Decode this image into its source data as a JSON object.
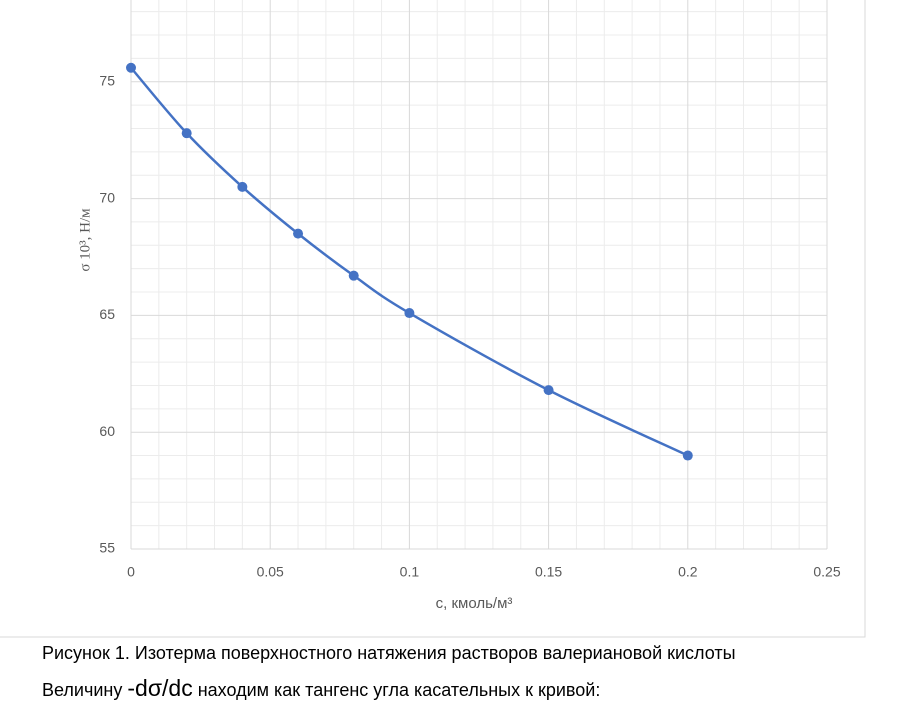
{
  "chart_data": {
    "type": "line",
    "xlabel": "c, кмоль/м³",
    "ylabel": "σ 10³, Н/м",
    "x": [
      0,
      0.02,
      0.04,
      0.06,
      0.08,
      0.1,
      0.15,
      0.2
    ],
    "series": [
      {
        "name": "σ",
        "color": "#4472c4",
        "values": [
          75.6,
          72.8,
          70.5,
          68.5,
          66.7,
          65.1,
          61.8,
          59.0
        ]
      }
    ],
    "xlim": [
      0,
      0.25
    ],
    "ylim": [
      55,
      78.5
    ],
    "xticks": [
      0,
      0.05,
      0.1,
      0.15,
      0.2,
      0.25
    ],
    "yticks": [
      55,
      60,
      65,
      70,
      75
    ],
    "minor_xticks": [
      0.01,
      0.02,
      0.03,
      0.04,
      0.06,
      0.07,
      0.08,
      0.09,
      0.11,
      0.12,
      0.13,
      0.14,
      0.16,
      0.17,
      0.18,
      0.19,
      0.21,
      0.22,
      0.23,
      0.24
    ],
    "minor_yticks": [
      56,
      57,
      58,
      59,
      61,
      62,
      63,
      64,
      66,
      67,
      68,
      69,
      71,
      72,
      73,
      74,
      76,
      77,
      78
    ],
    "grid": true,
    "smooth": true
  },
  "caption": {
    "figure": "Рисунок 1. Изотерма поверхностного натяжения растворов валериановой кислоты",
    "text_before": "Величину",
    "formula": "-dσ/dc",
    "text_after": "находим как тангенс угла касательных к кривой:"
  }
}
